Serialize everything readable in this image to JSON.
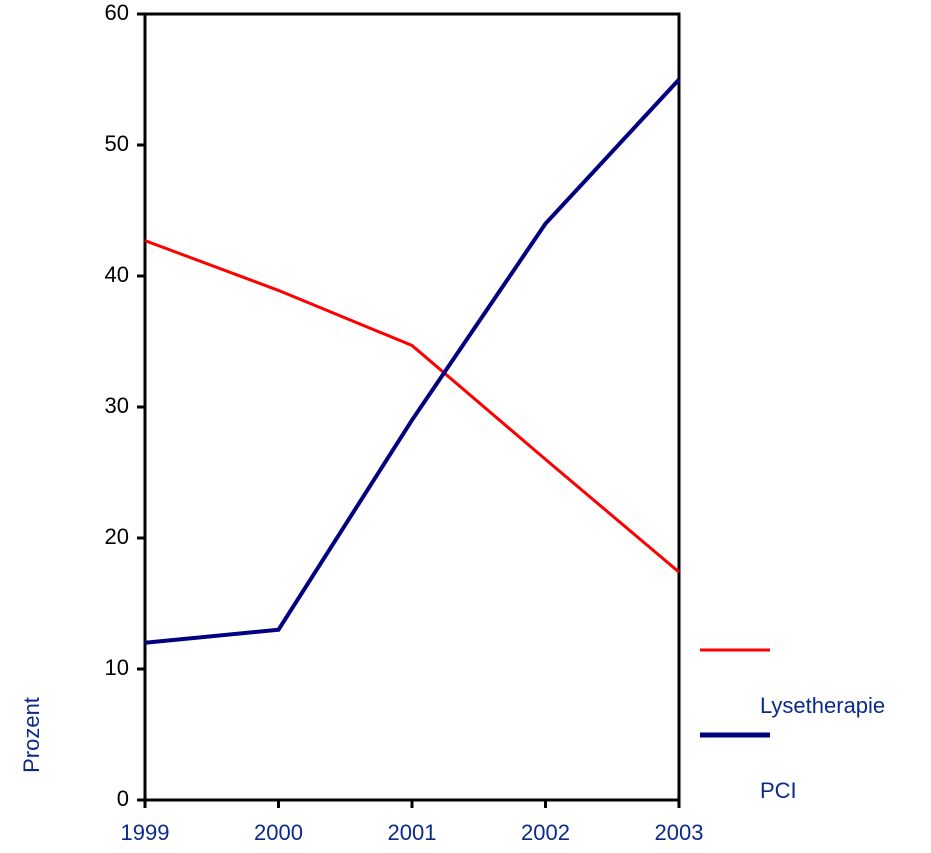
{
  "chart_data": {
    "type": "line",
    "y_label": "Prozent",
    "x": [
      1999,
      2000,
      2001,
      2002,
      2003
    ],
    "xlim": [
      1999,
      2003
    ],
    "xticks": [
      1999,
      2000,
      2001,
      2002,
      2003
    ],
    "ylim": [
      0,
      60
    ],
    "yticks": [
      0,
      10,
      20,
      30,
      40,
      50,
      60
    ],
    "series": [
      {
        "name": "Lysetherapie",
        "color": "#ff0000",
        "values": [
          42.7,
          38.9,
          34.7,
          26,
          17.4
        ]
      },
      {
        "name": "PCI",
        "color": "#000080",
        "values": [
          12,
          13,
          29,
          44,
          55
        ]
      }
    ]
  }
}
